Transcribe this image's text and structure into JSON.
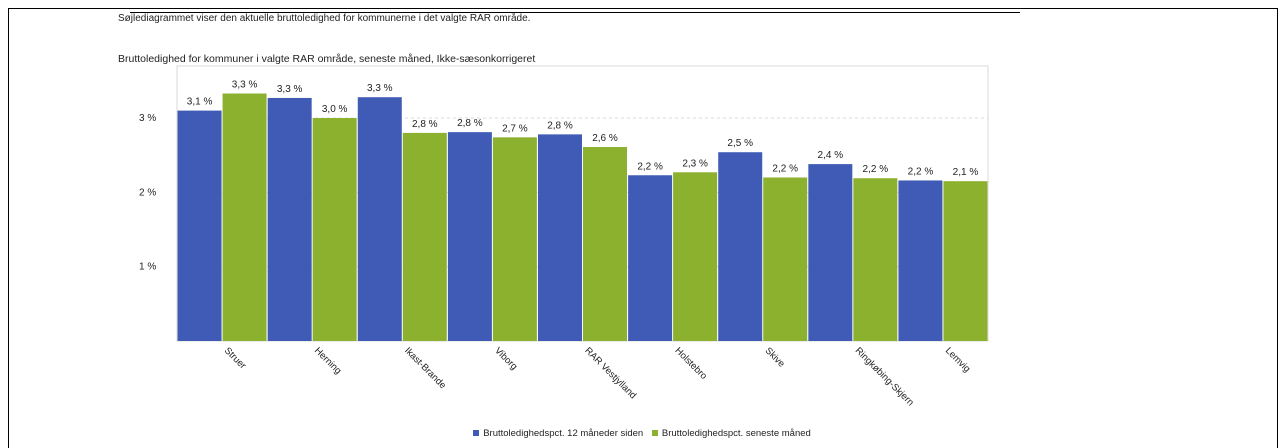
{
  "intro_text": "Søjlediagrammet viser den aktuelle bruttoledighed for kommunerne i det valgte RAR område.",
  "chart_data": {
    "type": "bar",
    "title": "Bruttoledighed for kommuner i valgte RAR område, seneste måned, Ikke-sæsonkorrigeret",
    "categories": [
      "Struer",
      "Herning",
      "Ikast-Brande",
      "Viborg",
      "RAR Vestjylland",
      "Holstebro",
      "Skive",
      "Ringkøbing-Skjern",
      "Lemvig"
    ],
    "series": [
      {
        "name": "Bruttoledighedspct. 12 måneder siden",
        "color": "#3f5bb5",
        "values": [
          3.1,
          3.27,
          3.28,
          2.81,
          2.78,
          2.23,
          2.54,
          2.38,
          2.16
        ],
        "labels": [
          "3,1 %",
          "3,3 %",
          "3,3 %",
          "2,8 %",
          "2,8 %",
          "2,2 %",
          "2,5 %",
          "2,4 %",
          "2,2 %"
        ]
      },
      {
        "name": "Bruttoledighedspct. seneste måned",
        "color": "#8cb12e",
        "values": [
          3.33,
          3.0,
          2.8,
          2.74,
          2.61,
          2.27,
          2.2,
          2.19,
          2.15
        ],
        "labels": [
          "3,3 %",
          "3,0 %",
          "2,8 %",
          "2,7 %",
          "2,6 %",
          "2,3 %",
          "2,2 %",
          "2,2 %",
          "2,1 %"
        ]
      }
    ],
    "y_ticks": [
      {
        "value": 1,
        "label": "1 %"
      },
      {
        "value": 2,
        "label": "2 %"
      },
      {
        "value": 3,
        "label": "3 %"
      }
    ],
    "ylim": [
      0,
      3.7
    ],
    "grid": true,
    "legend_position": "bottom"
  }
}
